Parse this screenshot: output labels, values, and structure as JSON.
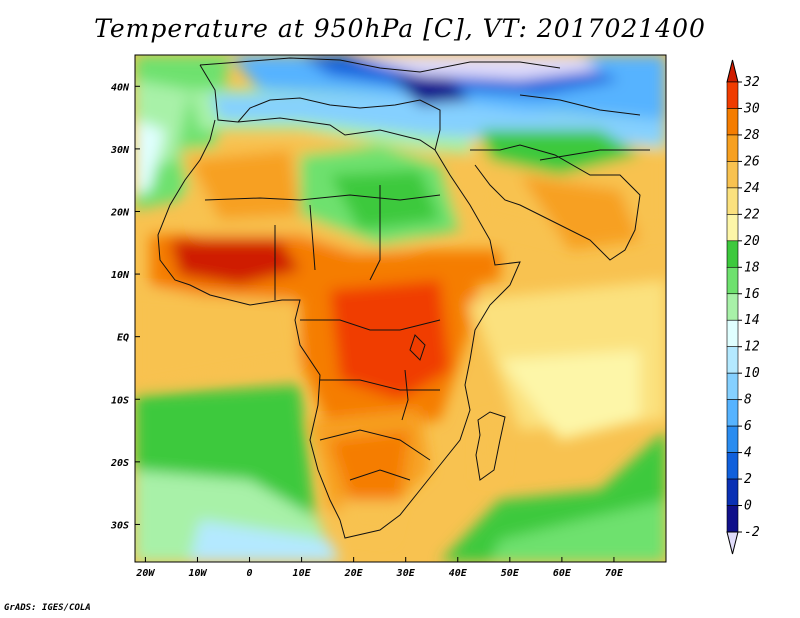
{
  "title": "Temperature at 950hPa [C], VT: 2017021400",
  "credit": "GrADS: IGES/COLA",
  "map": {
    "lon_range": [
      -22,
      80
    ],
    "lat_range": [
      -36,
      45
    ],
    "lon_ticks": [
      {
        "value": -20,
        "label": "20W"
      },
      {
        "value": -10,
        "label": "10W"
      },
      {
        "value": 0,
        "label": "0"
      },
      {
        "value": 10,
        "label": "10E"
      },
      {
        "value": 20,
        "label": "20E"
      },
      {
        "value": 30,
        "label": "30E"
      },
      {
        "value": 40,
        "label": "40E"
      },
      {
        "value": 50,
        "label": "50E"
      },
      {
        "value": 60,
        "label": "60E"
      },
      {
        "value": 70,
        "label": "70E"
      }
    ],
    "lat_ticks": [
      {
        "value": 40,
        "label": "40N"
      },
      {
        "value": 30,
        "label": "30N"
      },
      {
        "value": 20,
        "label": "20N"
      },
      {
        "value": 10,
        "label": "10N"
      },
      {
        "value": 0,
        "label": "EQ"
      },
      {
        "value": -10,
        "label": "10S"
      },
      {
        "value": -20,
        "label": "20S"
      },
      {
        "value": -30,
        "label": "30S"
      }
    ]
  },
  "colorbar": {
    "levels": [
      "32",
      "30",
      "28",
      "26",
      "24",
      "22",
      "20",
      "18",
      "16",
      "14",
      "12",
      "10",
      "8",
      "6",
      "4",
      "2",
      "0",
      "-2"
    ],
    "colors": [
      "#cf1d00",
      "#f03c00",
      "#f57d00",
      "#f7a020",
      "#f8c250",
      "#fbe17e",
      "#fdf6a8",
      "#3dc93d",
      "#6ee16e",
      "#a8f1a8",
      "#e0ffff",
      "#b4e9ff",
      "#85d0ff",
      "#56b3ff",
      "#2a8cf0",
      "#1060dc",
      "#0a30b4",
      "#10108a",
      "#e0dcfa"
    ]
  },
  "colors": {
    "ocean_warm": "#fdf6a8",
    "ocean_mild": "#f8c250",
    "ocean_cool": "#3dc93d",
    "land_hot": "#f03c00",
    "land_warm": "#f7a020",
    "med": "#2a8cf0",
    "europe": "#e0dcfa"
  }
}
